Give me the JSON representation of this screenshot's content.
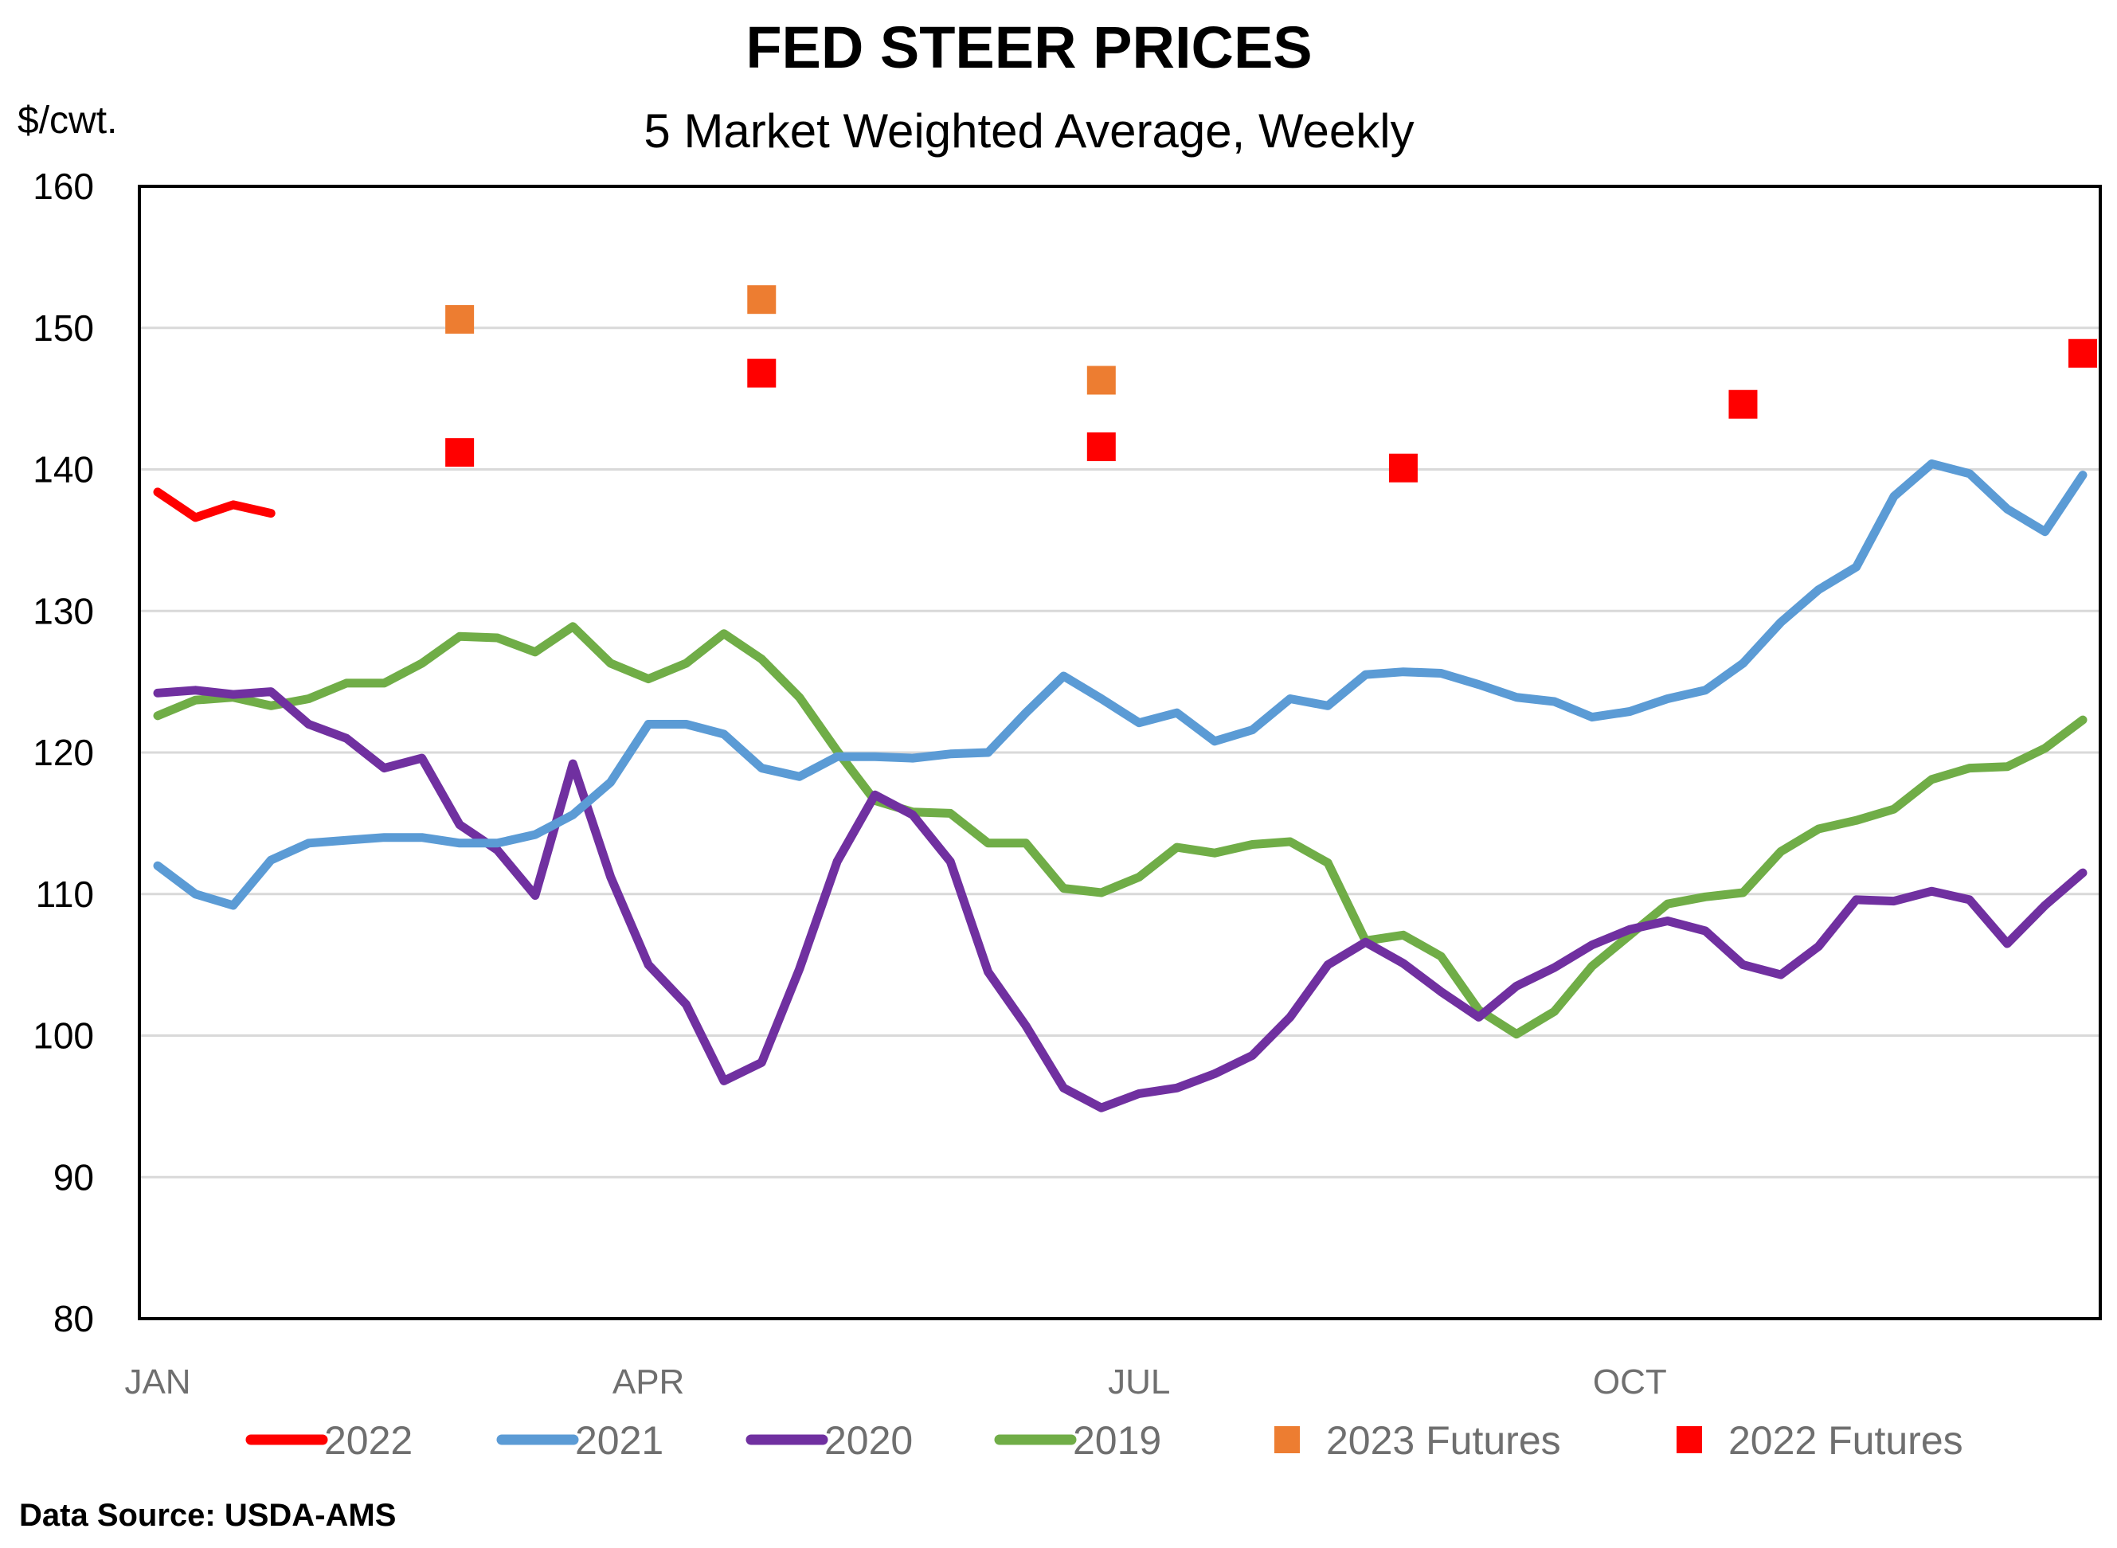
{
  "chart_data": {
    "type": "line",
    "title": "FED STEER PRICES",
    "subtitle": "5 Market Weighted Average, Weekly",
    "ylabel": "$/cwt.",
    "xlabel": "",
    "ylim": [
      80,
      160
    ],
    "yticks": [
      80,
      90,
      100,
      110,
      120,
      130,
      140,
      150,
      160
    ],
    "xlim_weeks": [
      1,
      52
    ],
    "xticks": [
      {
        "label": "JAN",
        "week": 1
      },
      {
        "label": "APR",
        "week": 14
      },
      {
        "label": "JUL",
        "week": 27
      },
      {
        "label": "OCT",
        "week": 40
      }
    ],
    "grid": true,
    "legend_position": "bottom",
    "source": "Data Source: USDA-AMS",
    "series": [
      {
        "name": "2022",
        "color": "#ff0000",
        "kind": "line",
        "values": [
          138.4,
          136.6,
          137.5,
          136.9
        ]
      },
      {
        "name": "2021",
        "color": "#5b9bd5",
        "kind": "line",
        "values": [
          112.0,
          110.0,
          109.2,
          112.4,
          113.6,
          113.8,
          114.0,
          114.0,
          113.6,
          113.6,
          114.2,
          115.6,
          117.9,
          122.0,
          122.0,
          121.3,
          118.9,
          118.3,
          119.7,
          119.7,
          119.6,
          119.9,
          120.0,
          122.8,
          125.4,
          123.8,
          122.1,
          122.8,
          120.8,
          121.6,
          123.8,
          123.3,
          125.5,
          125.7,
          125.6,
          124.8,
          123.9,
          123.6,
          122.5,
          122.9,
          123.8,
          124.4,
          126.3,
          129.2,
          131.5,
          133.1,
          138.1,
          140.4,
          139.7,
          137.2,
          135.6,
          139.6
        ]
      },
      {
        "name": "2020",
        "color": "#7030a0",
        "kind": "line",
        "values": [
          124.2,
          124.4,
          124.1,
          124.3,
          122.0,
          121.0,
          118.9,
          119.6,
          114.9,
          113.1,
          109.9,
          119.2,
          111.2,
          105.0,
          102.2,
          96.8,
          98.1,
          104.7,
          112.3,
          117.0,
          115.6,
          112.3,
          104.5,
          100.7,
          96.3,
          94.9,
          95.9,
          96.3,
          97.3,
          98.6,
          101.3,
          105.0,
          106.6,
          105.1,
          103.1,
          101.3,
          103.5,
          104.8,
          106.4,
          107.5,
          108.1,
          107.4,
          105.0,
          104.3,
          106.3,
          109.6,
          109.5,
          110.2,
          109.6,
          106.5,
          109.2,
          111.5
        ]
      },
      {
        "name": "2019",
        "color": "#70ad47",
        "kind": "line",
        "values": [
          122.6,
          123.7,
          123.9,
          123.3,
          123.8,
          124.9,
          124.9,
          126.3,
          128.2,
          128.1,
          127.1,
          128.9,
          126.3,
          125.2,
          126.3,
          128.4,
          126.6,
          123.9,
          120.1,
          116.6,
          115.8,
          115.7,
          113.6,
          113.6,
          110.4,
          110.1,
          111.2,
          113.3,
          112.9,
          113.5,
          113.7,
          112.2,
          106.7,
          107.1,
          105.6,
          101.8,
          100.1,
          101.7,
          104.9,
          107.1,
          109.3,
          109.8,
          110.1,
          113.0,
          114.6,
          115.2,
          116.0,
          118.1,
          118.9,
          119.0,
          120.3,
          122.3
        ]
      },
      {
        "name": "2023 Futures",
        "color": "#ed7d31",
        "kind": "marker",
        "points": [
          {
            "week": 9,
            "value": 150.6
          },
          {
            "week": 17,
            "value": 152.0
          },
          {
            "week": 26,
            "value": 146.3
          }
        ]
      },
      {
        "name": "2022 Futures",
        "color": "#ff0000",
        "kind": "marker",
        "points": [
          {
            "week": 9,
            "value": 141.2
          },
          {
            "week": 17,
            "value": 146.8
          },
          {
            "week": 26,
            "value": 141.6
          },
          {
            "week": 34,
            "value": 140.1
          },
          {
            "week": 43,
            "value": 144.6
          },
          {
            "week": 52,
            "value": 148.2
          }
        ]
      }
    ]
  }
}
